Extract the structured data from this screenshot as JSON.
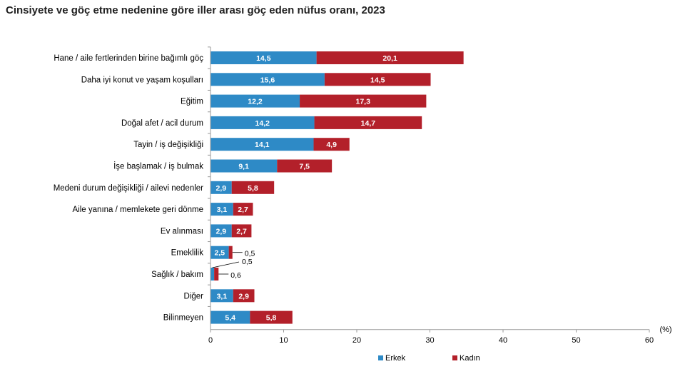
{
  "chart_data": {
    "type": "bar",
    "orientation": "horizontal",
    "stacked": true,
    "title": "Cinsiyete ve göç etme nedenine göre iller arası göç eden nüfus oranı, 2023",
    "xlabel": "",
    "unit_label": "(%)",
    "xlim": [
      0,
      60
    ],
    "xticks": [
      0,
      10,
      20,
      30,
      40,
      50,
      60
    ],
    "grid": false,
    "legend_position": "bottom",
    "categories": [
      "Hane / aile fertlerinden birine bağımlı göç",
      "Daha iyi konut ve yaşam koşulları",
      "Eğitim",
      "Doğal afet / acil durum",
      "Tayin / iş değişikliği",
      "İşe başlamak / iş bulmak",
      "Medeni durum değişikliği / ailevi nedenler",
      "Aile yanına / memlekete geri dönme",
      "Ev alınması",
      "Emeklilik",
      "Sağlık / bakım",
      "Diğer",
      "Bilinmeyen"
    ],
    "series": [
      {
        "name": "Erkek",
        "color": "#2e8ac6",
        "values": [
          14.5,
          15.6,
          12.2,
          14.2,
          14.1,
          9.1,
          2.9,
          3.1,
          2.9,
          2.5,
          0.5,
          3.1,
          5.4
        ],
        "labels": [
          "14,5",
          "15,6",
          "12,2",
          "14,2",
          "14,1",
          "9,1",
          "2,9",
          "3,1",
          "2,9",
          "2,5",
          "0,5",
          "3,1",
          "5,4"
        ]
      },
      {
        "name": "Kadın",
        "color": "#b3202a",
        "values": [
          20.1,
          14.5,
          17.3,
          14.7,
          4.9,
          7.5,
          5.8,
          2.7,
          2.7,
          0.5,
          0.6,
          2.9,
          5.8
        ],
        "labels": [
          "20,1",
          "14,5",
          "17,3",
          "14,7",
          "4,9",
          "7,5",
          "5,8",
          "2,7",
          "2,7",
          "0,5",
          "0,6",
          "2,9",
          "5,8"
        ]
      }
    ]
  }
}
